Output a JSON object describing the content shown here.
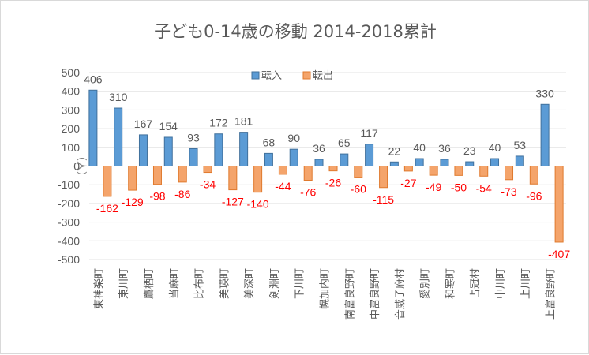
{
  "chart_data": {
    "type": "bar",
    "title": "子ども0-14歳の移動  2014-2018累計",
    "ylabel": "（人）",
    "ylim": [
      -500,
      500
    ],
    "yticks": [
      500,
      400,
      300,
      200,
      100,
      0,
      -100,
      -200,
      -300,
      -400,
      -500
    ],
    "legend_position": "top-center",
    "categories": [
      "東神楽町",
      "東川町",
      "鷹栖町",
      "当麻町",
      "比布町",
      "美瑛町",
      "美深町",
      "剣淵町",
      "下川町",
      "幌加内町",
      "南富良野町",
      "中富良野町",
      "音威子府村",
      "愛別町",
      "和寒町",
      "占冠村",
      "中川町",
      "上川町",
      "上富良野町"
    ],
    "series": [
      {
        "name": "転入",
        "color": "#5b9bd5",
        "values": [
          406,
          310,
          167,
          154,
          93,
          172,
          181,
          68,
          90,
          36,
          65,
          117,
          22,
          40,
          36,
          23,
          40,
          53,
          330
        ]
      },
      {
        "name": "転出",
        "color": "#f4a46b",
        "values": [
          -162,
          -129,
          -98,
          -86,
          -34,
          -127,
          -140,
          -44,
          -76,
          -26,
          -60,
          -115,
          -27,
          -49,
          -50,
          -54,
          -73,
          -96,
          -407
        ]
      }
    ]
  }
}
